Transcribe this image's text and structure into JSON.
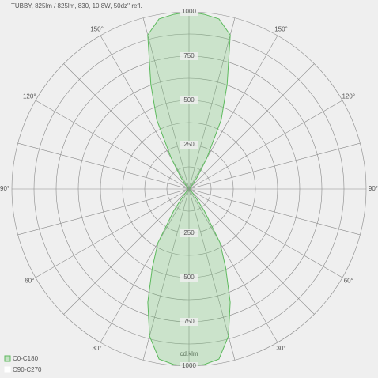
{
  "chart_data": {
    "type": "polar",
    "title": "TUBBY, 825lm / 825lm, 830, 10,8W, 50dz'' refl.",
    "unit": "cd.klm",
    "angles": [
      0,
      5,
      10,
      15,
      20,
      25,
      30,
      35,
      40,
      45,
      50,
      55,
      60,
      65,
      70,
      75,
      80,
      85,
      90,
      95,
      100,
      105,
      110,
      115,
      120,
      125,
      130,
      135,
      140,
      145,
      150,
      155,
      160,
      165,
      170,
      175,
      180
    ],
    "series": [
      {
        "name": "C90-C270",
        "color": "#ffffff",
        "values": [
          1000,
          995,
          975,
          860,
          680,
          490,
          350,
          150,
          50,
          20,
          10,
          10,
          10,
          10,
          10,
          10,
          10,
          10,
          10,
          10,
          10,
          10,
          10,
          10,
          10,
          10,
          10,
          10,
          25,
          80,
          200,
          430,
          630,
          900,
          975,
          990,
          1000
        ]
      },
      {
        "name": "C0-C180",
        "color": "#5cb85c",
        "values": [
          1000,
          995,
          975,
          860,
          680,
          490,
          350,
          150,
          50,
          20,
          10,
          10,
          10,
          10,
          10,
          10,
          10,
          10,
          10,
          10,
          10,
          10,
          10,
          10,
          10,
          10,
          10,
          10,
          25,
          80,
          200,
          430,
          630,
          900,
          975,
          990,
          1000
        ]
      }
    ],
    "rlim": [
      0,
      1000
    ],
    "rticks": [
      250,
      500,
      750,
      1000
    ],
    "rminor": [
      125,
      375,
      625,
      875
    ],
    "angle_grid": [
      0,
      15,
      30,
      45,
      60,
      75,
      90,
      105,
      120,
      135,
      150,
      165
    ],
    "angle_ticks": [
      {
        "value": 30,
        "label": "30°"
      },
      {
        "value": 60,
        "label": "60°"
      },
      {
        "value": 90,
        "label": "90°"
      },
      {
        "value": 120,
        "label": "120°"
      },
      {
        "value": 150,
        "label": "150°"
      }
    ]
  }
}
